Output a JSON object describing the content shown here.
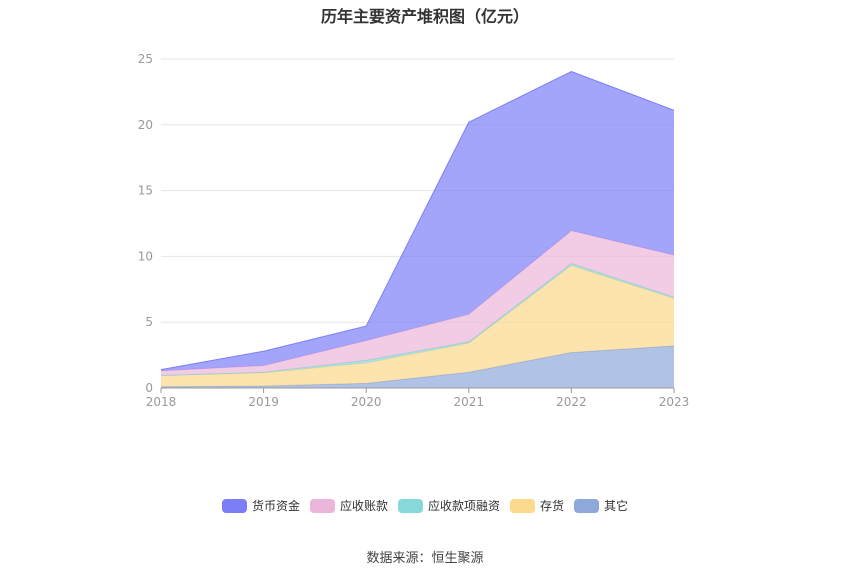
{
  "chart_data": {
    "type": "area",
    "stacked": true,
    "title": "历年主要资产堆积图（亿元）",
    "x": [
      "2018",
      "2019",
      "2020",
      "2021",
      "2022",
      "2023"
    ],
    "ylim": [
      0,
      25
    ],
    "yticks": [
      "0",
      "5",
      "10",
      "15",
      "20",
      "25"
    ],
    "grid": true,
    "legend_position": "bottom",
    "series": [
      {
        "name": "其它",
        "color": "#8fa8dc",
        "values": [
          0.1,
          0.15,
          0.35,
          1.2,
          2.7,
          3.2
        ]
      },
      {
        "name": "存货",
        "color": "#fcd98c",
        "values": [
          0.85,
          1.0,
          1.55,
          2.2,
          6.6,
          3.6
        ]
      },
      {
        "name": "应收款项融资",
        "color": "#86d8d9",
        "values": [
          0.0,
          0.05,
          0.2,
          0.1,
          0.15,
          0.1
        ]
      },
      {
        "name": "应收账款",
        "color": "#ecb5da",
        "values": [
          0.35,
          0.5,
          1.5,
          2.1,
          2.5,
          3.2
        ]
      },
      {
        "name": "货币资金",
        "color": "#7b7ff7",
        "values": [
          0.1,
          1.1,
          1.1,
          14.6,
          12.1,
          11.0
        ]
      }
    ],
    "legend_order": [
      "货币资金",
      "应收账款",
      "应收款项融资",
      "存货",
      "其它"
    ]
  },
  "source": "数据来源：恒生聚源"
}
